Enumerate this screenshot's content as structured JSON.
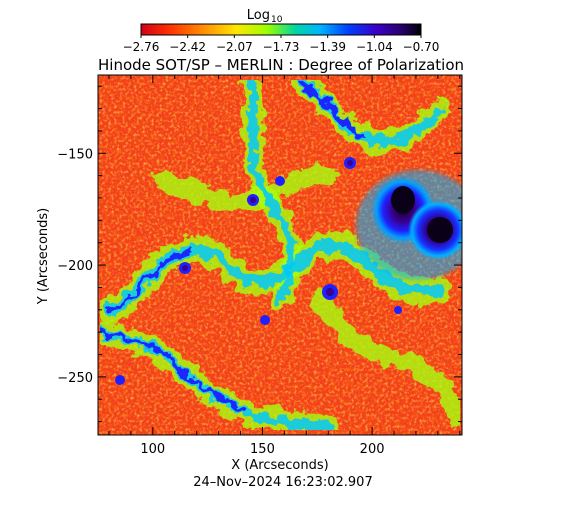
{
  "figure": {
    "title": "Hinode SOT/SP – MERLIN : Degree of Polarization",
    "timestamp": "24–Nov–2024 16:23:02.907",
    "xlabel": "X (Arcseconds)",
    "ylabel": "Y (Arcseconds)"
  },
  "colorbar": {
    "label_main": "Log",
    "label_sub": "10",
    "ticks": [
      "−2.76",
      "−2.42",
      "−2.07",
      "−1.73",
      "−1.39",
      "−1.04",
      "−0.70"
    ],
    "range": [
      -2.76,
      -0.7
    ],
    "colormap": [
      "#d0001a",
      "#ff3000",
      "#ff8c00",
      "#ffe600",
      "#9cff00",
      "#00d6a0",
      "#00b4ff",
      "#0040ff",
      "#3c00c8",
      "#28006e",
      "#000000"
    ]
  },
  "axes": {
    "x_ticks": [
      "100",
      "150",
      "200"
    ],
    "x_tick_values": [
      100,
      150,
      200
    ],
    "x_range": [
      75,
      241
    ],
    "y_ticks": [
      "−150",
      "−200",
      "−250"
    ],
    "y_tick_values": [
      -150,
      -200,
      -250
    ],
    "y_range": [
      -276,
      -115
    ]
  }
}
